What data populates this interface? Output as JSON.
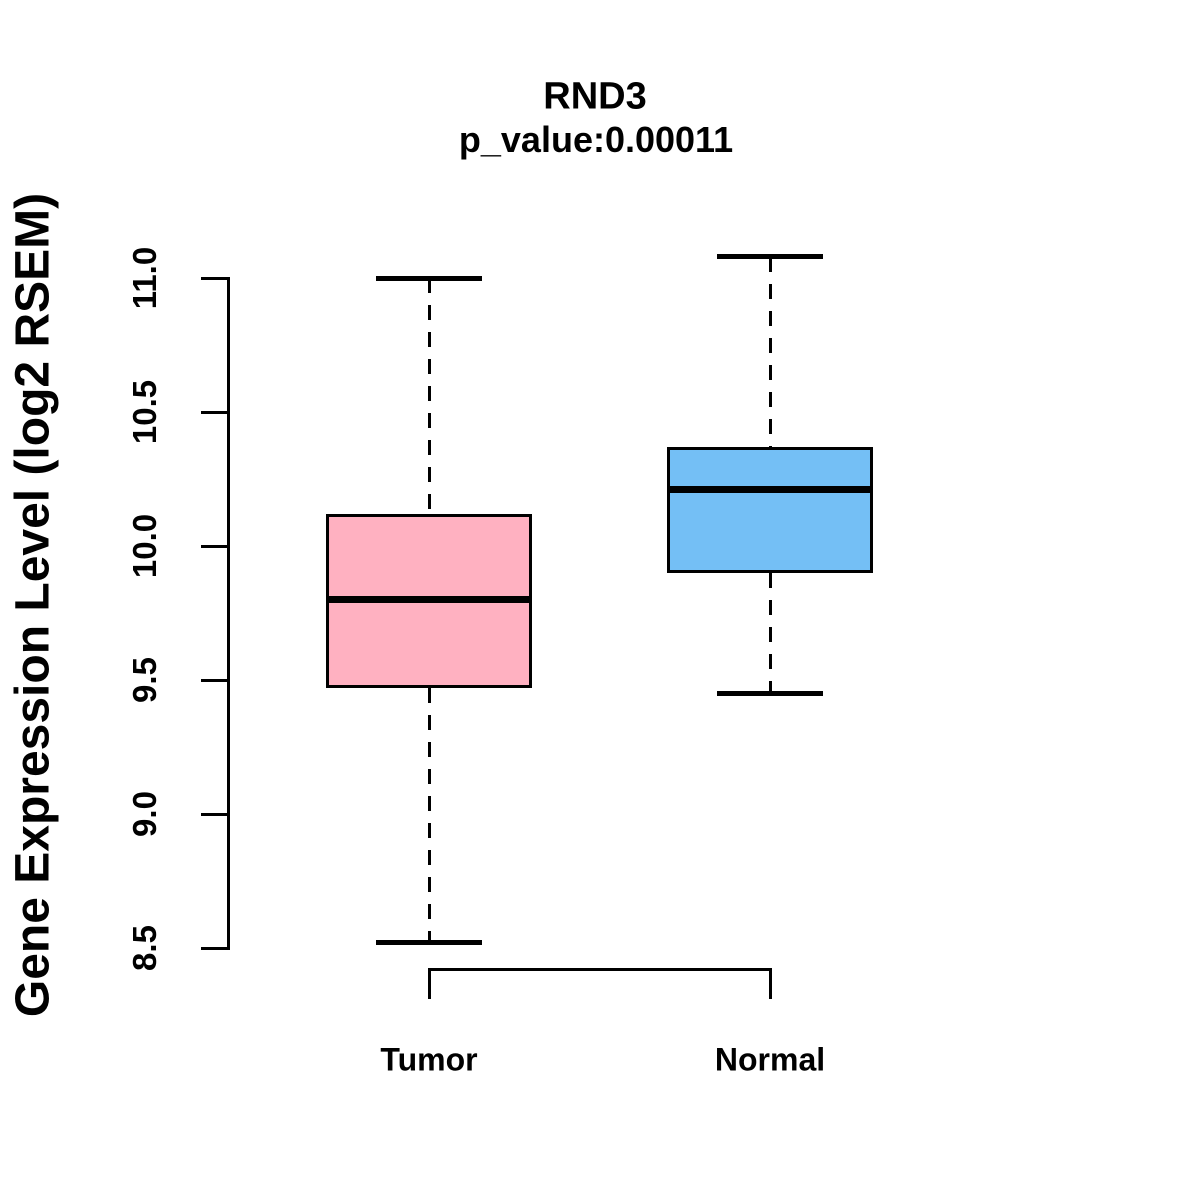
{
  "title": "RND3",
  "subtitle": "p_value:0.00011",
  "y_axis": {
    "label": "Gene Expression Level (log2 RSEM)",
    "tick_labels": [
      "8.5",
      "9.0",
      "9.5",
      "10.0",
      "10.5",
      "11.0"
    ]
  },
  "categories": [
    "Tumor",
    "Normal"
  ],
  "colors": {
    "tumor_fill": "#FFB1C1",
    "normal_fill": "#74BFF5",
    "line": "#000000",
    "background": "#FFFFFF"
  },
  "chart_data": {
    "type": "boxplot",
    "title": "RND3",
    "subtitle": "p_value:0.00011",
    "ylabel": "Gene Expression Level (log2 RSEM)",
    "xlabel": "",
    "categories": [
      "Tumor",
      "Normal"
    ],
    "series": [
      {
        "name": "Tumor",
        "min": 8.52,
        "q1": 9.47,
        "median": 9.8,
        "q3": 10.12,
        "max": 11.0,
        "fill_color": "#FFB1C1"
      },
      {
        "name": "Normal",
        "min": 9.45,
        "q1": 9.9,
        "median": 10.21,
        "q3": 10.37,
        "max": 11.08,
        "fill_color": "#74BFF5"
      }
    ],
    "yticks": [
      8.5,
      9.0,
      9.5,
      10.0,
      10.5,
      11.0
    ],
    "ytick_labels": [
      "8.5",
      "9.0",
      "9.5",
      "10.0",
      "10.5",
      "11.0"
    ],
    "ylim": [
      8.5,
      11.0
    ],
    "grid": false,
    "legend": false,
    "orientation": "vertical",
    "comparison_bracket": {
      "between": [
        "Tumor",
        "Normal"
      ]
    }
  }
}
